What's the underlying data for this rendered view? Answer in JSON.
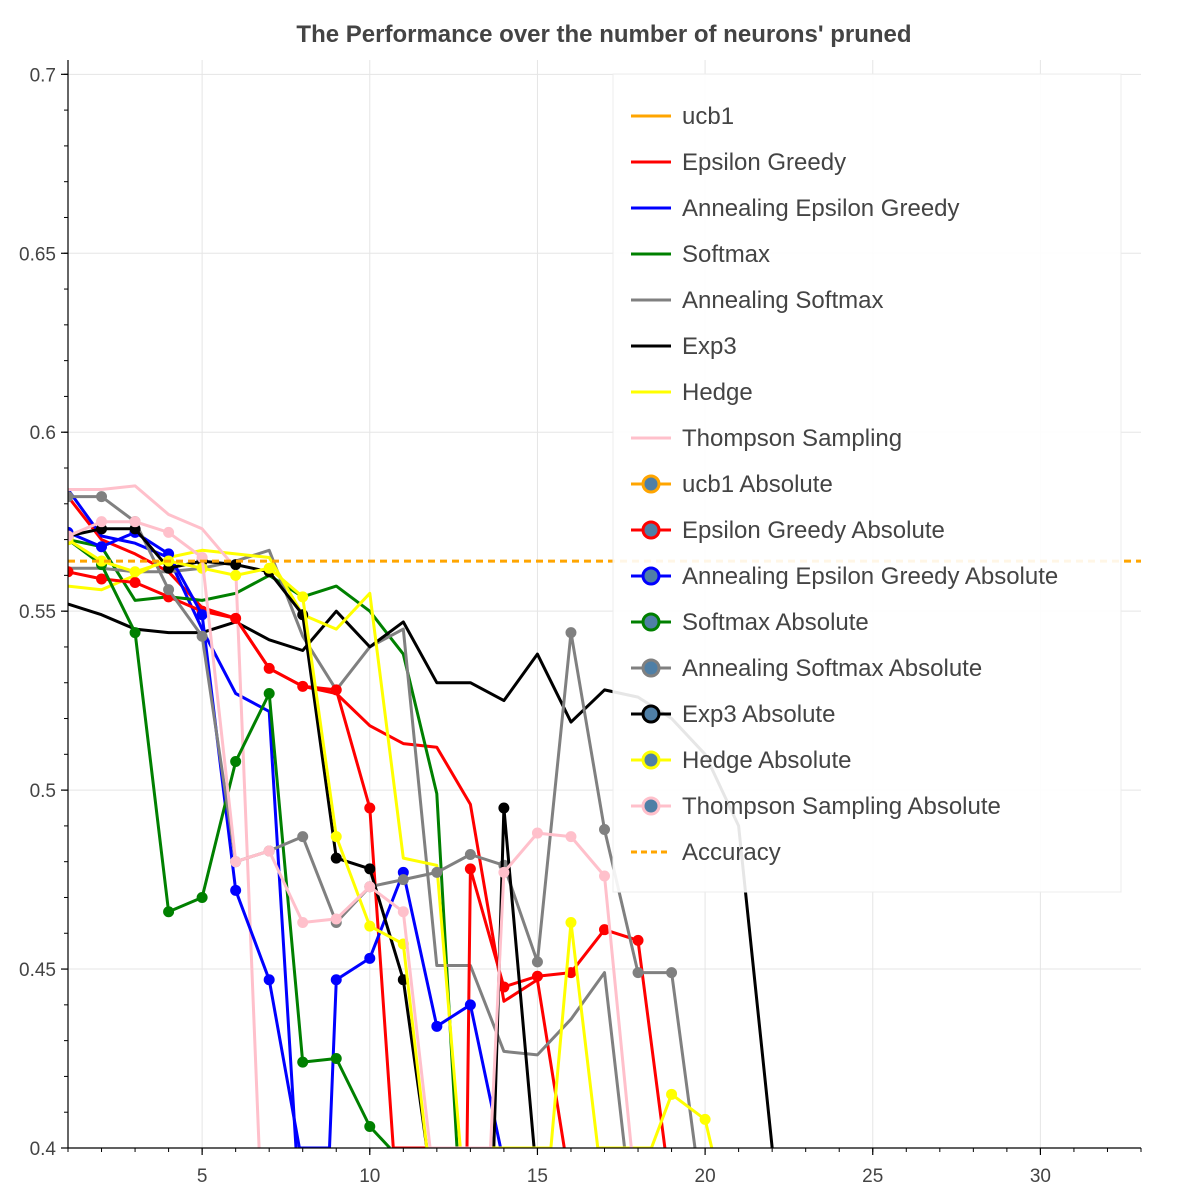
{
  "chart_data": {
    "type": "line",
    "title": "The Performance over the number of neurons' pruned",
    "xlabel": "",
    "ylabel": "",
    "xlim": [
      1,
      33
    ],
    "ylim": [
      0.4,
      0.704
    ],
    "x_ticks": [
      5,
      10,
      15,
      20,
      25,
      30
    ],
    "y_ticks": [
      0.4,
      0.45,
      0.5,
      0.55,
      0.6,
      0.65,
      0.7
    ],
    "x_tick_labels": [
      "5",
      "10",
      "15",
      "20",
      "25",
      "30"
    ],
    "y_tick_labels": [
      "0.4",
      "0.45",
      "0.5",
      "0.55",
      "0.6",
      "0.65",
      "0.7"
    ],
    "grid": true,
    "legend_position": "top-right",
    "series": [
      {
        "name": "ucb1",
        "color": "#ffa500",
        "marker": false,
        "dash": false,
        "points": []
      },
      {
        "name": "Epsilon Greedy",
        "color": "#ff0000",
        "marker": false,
        "dash": false,
        "points": [
          [
            1,
            0.582
          ],
          [
            2,
            0.57
          ],
          [
            3,
            0.566
          ],
          [
            4,
            0.561
          ],
          [
            5,
            0.551
          ],
          [
            6,
            0.548
          ],
          [
            7,
            0.534
          ],
          [
            8,
            0.529
          ],
          [
            9,
            0.527
          ],
          [
            10,
            0.518
          ],
          [
            11,
            0.513
          ],
          [
            12,
            0.512
          ],
          [
            13,
            0.496
          ],
          [
            14,
            0.441
          ],
          [
            15,
            0.447
          ],
          [
            15.8,
            0.4
          ]
        ]
      },
      {
        "name": "Annealing Epsilon Greedy",
        "color": "#0000ff",
        "marker": false,
        "dash": false,
        "points": [
          [
            1,
            0.584
          ],
          [
            2,
            0.571
          ],
          [
            3,
            0.569
          ],
          [
            4,
            0.565
          ],
          [
            5,
            0.545
          ],
          [
            6,
            0.527
          ],
          [
            7,
            0.522
          ],
          [
            7.8,
            0.4
          ]
        ]
      },
      {
        "name": "Softmax",
        "color": "#008000",
        "marker": false,
        "dash": false,
        "points": [
          [
            1,
            0.57
          ],
          [
            2,
            0.568
          ],
          [
            3,
            0.553
          ],
          [
            4,
            0.554
          ],
          [
            5,
            0.553
          ],
          [
            6,
            0.555
          ],
          [
            7,
            0.56
          ],
          [
            8,
            0.554
          ],
          [
            9,
            0.557
          ],
          [
            10,
            0.55
          ],
          [
            11,
            0.538
          ],
          [
            12,
            0.499
          ],
          [
            12.6,
            0.4
          ]
        ]
      },
      {
        "name": "Annealing Softmax",
        "color": "#808080",
        "marker": false,
        "dash": false,
        "points": [
          [
            1,
            0.562
          ],
          [
            2,
            0.562
          ],
          [
            3,
            0.561
          ],
          [
            4,
            0.561
          ],
          [
            5,
            0.562
          ],
          [
            6,
            0.564
          ],
          [
            7,
            0.567
          ],
          [
            8,
            0.543
          ],
          [
            9,
            0.528
          ],
          [
            10,
            0.54
          ],
          [
            11,
            0.545
          ],
          [
            12,
            0.451
          ],
          [
            13,
            0.451
          ],
          [
            14,
            0.427
          ],
          [
            15,
            0.426
          ],
          [
            16,
            0.436
          ],
          [
            17,
            0.449
          ],
          [
            17.6,
            0.4
          ]
        ]
      },
      {
        "name": "Exp3",
        "color": "#000000",
        "marker": false,
        "dash": false,
        "points": [
          [
            1,
            0.552
          ],
          [
            2,
            0.549
          ],
          [
            3,
            0.545
          ],
          [
            4,
            0.544
          ],
          [
            5,
            0.544
          ],
          [
            6,
            0.547
          ],
          [
            7,
            0.542
          ],
          [
            8,
            0.539
          ],
          [
            9,
            0.55
          ],
          [
            10,
            0.54
          ],
          [
            11,
            0.547
          ],
          [
            12,
            0.53
          ],
          [
            13,
            0.53
          ],
          [
            14,
            0.525
          ],
          [
            15,
            0.538
          ],
          [
            16,
            0.519
          ],
          [
            17,
            0.528
          ],
          [
            18,
            0.526
          ],
          [
            19,
            0.52
          ],
          [
            20,
            0.51
          ],
          [
            21,
            0.49
          ],
          [
            22,
            0.4
          ]
        ]
      },
      {
        "name": "Hedge",
        "color": "#ffff00",
        "marker": false,
        "dash": false,
        "points": [
          [
            1,
            0.557
          ],
          [
            2,
            0.556
          ],
          [
            3,
            0.56
          ],
          [
            4,
            0.565
          ],
          [
            5,
            0.567
          ],
          [
            6,
            0.566
          ],
          [
            7,
            0.565
          ],
          [
            8,
            0.549
          ],
          [
            9,
            0.545
          ],
          [
            10,
            0.555
          ],
          [
            11,
            0.481
          ],
          [
            12,
            0.479
          ],
          [
            12.7,
            0.4
          ]
        ]
      },
      {
        "name": "Thompson Sampling",
        "color": "#ffc0cb",
        "marker": false,
        "dash": false,
        "points": [
          [
            1,
            0.584
          ],
          [
            2,
            0.584
          ],
          [
            3,
            0.585
          ],
          [
            4,
            0.577
          ],
          [
            5,
            0.573
          ],
          [
            6,
            0.562
          ],
          [
            6.7,
            0.4
          ]
        ]
      },
      {
        "name": "ucb1 Absolute",
        "color": "#ffa500",
        "marker": true,
        "dash": false,
        "points": []
      },
      {
        "name": "Epsilon Greedy Absolute",
        "color": "#ff0000",
        "marker": true,
        "dash": false,
        "points": [
          [
            1,
            0.561
          ],
          [
            2,
            0.559
          ],
          [
            3,
            0.558
          ],
          [
            4,
            0.554
          ],
          [
            5,
            0.55
          ],
          [
            6,
            0.548
          ],
          [
            7,
            0.534
          ],
          [
            8,
            0.529
          ],
          [
            9,
            0.528
          ],
          [
            10,
            0.495
          ],
          [
            10.7,
            0.4
          ],
          [
            12.9,
            0.4
          ],
          [
            13,
            0.478
          ],
          [
            14,
            0.445
          ],
          [
            15,
            0.448
          ],
          [
            16,
            0.449
          ],
          [
            17,
            0.461
          ],
          [
            18,
            0.458
          ],
          [
            18.8,
            0.4
          ]
        ]
      },
      {
        "name": "Annealing Epsilon Greedy Absolute",
        "color": "#0000ff",
        "marker": true,
        "dash": false,
        "points": [
          [
            1,
            0.572
          ],
          [
            2,
            0.568
          ],
          [
            3,
            0.572
          ],
          [
            4,
            0.566
          ],
          [
            5,
            0.549
          ],
          [
            6,
            0.472
          ],
          [
            7,
            0.447
          ],
          [
            7.9,
            0.4
          ],
          [
            8.8,
            0.4
          ],
          [
            9,
            0.447
          ],
          [
            10,
            0.453
          ],
          [
            11,
            0.477
          ],
          [
            12,
            0.434
          ],
          [
            13,
            0.44
          ],
          [
            13.9,
            0.4
          ]
        ]
      },
      {
        "name": "Softmax Absolute",
        "color": "#008000",
        "marker": true,
        "dash": false,
        "points": [
          [
            1,
            0.57
          ],
          [
            2,
            0.563
          ],
          [
            3,
            0.544
          ],
          [
            4,
            0.466
          ],
          [
            5,
            0.47
          ],
          [
            6,
            0.508
          ],
          [
            7,
            0.527
          ],
          [
            8,
            0.424
          ],
          [
            9,
            0.425
          ],
          [
            10,
            0.406
          ],
          [
            10.6,
            0.4
          ]
        ]
      },
      {
        "name": "Annealing Softmax Absolute",
        "color": "#808080",
        "marker": true,
        "dash": false,
        "points": [
          [
            1,
            0.582
          ],
          [
            2,
            0.582
          ],
          [
            3,
            0.575
          ],
          [
            4,
            0.556
          ],
          [
            5,
            0.543
          ],
          [
            6,
            0.48
          ],
          [
            7,
            0.483
          ],
          [
            8,
            0.487
          ],
          [
            9,
            0.463
          ],
          [
            10,
            0.473
          ],
          [
            11,
            0.475
          ],
          [
            12,
            0.477
          ],
          [
            13,
            0.482
          ],
          [
            14,
            0.479
          ],
          [
            15,
            0.452
          ],
          [
            16,
            0.544
          ],
          [
            17,
            0.489
          ],
          [
            18,
            0.449
          ],
          [
            19,
            0.449
          ],
          [
            19.7,
            0.4
          ]
        ]
      },
      {
        "name": "Exp3 Absolute",
        "color": "#000000",
        "marker": true,
        "dash": false,
        "points": [
          [
            1,
            0.571
          ],
          [
            2,
            0.573
          ],
          [
            3,
            0.573
          ],
          [
            4,
            0.562
          ],
          [
            5,
            0.564
          ],
          [
            6,
            0.563
          ],
          [
            7,
            0.561
          ],
          [
            8,
            0.549
          ],
          [
            9,
            0.481
          ],
          [
            10,
            0.478
          ],
          [
            11,
            0.447
          ],
          [
            11.7,
            0.4
          ],
          [
            13.7,
            0.4
          ],
          [
            14,
            0.495
          ],
          [
            14.9,
            0.4
          ]
        ]
      },
      {
        "name": "Hedge Absolute",
        "color": "#ffff00",
        "marker": true,
        "dash": false,
        "points": [
          [
            1,
            0.57
          ],
          [
            2,
            0.564
          ],
          [
            3,
            0.561
          ],
          [
            4,
            0.564
          ],
          [
            5,
            0.562
          ],
          [
            6,
            0.56
          ],
          [
            7,
            0.562
          ],
          [
            8,
            0.554
          ],
          [
            9,
            0.487
          ],
          [
            10,
            0.462
          ],
          [
            11,
            0.457
          ],
          [
            11.7,
            0.4
          ],
          [
            15.4,
            0.4
          ],
          [
            16,
            0.463
          ],
          [
            16.8,
            0.4
          ],
          [
            18.4,
            0.4
          ],
          [
            19,
            0.415
          ],
          [
            20,
            0.408
          ],
          [
            20.2,
            0.4
          ]
        ]
      },
      {
        "name": "Thompson Sampling Absolute",
        "color": "#ffc0cb",
        "marker": true,
        "dash": false,
        "points": [
          [
            1,
            0.571
          ],
          [
            2,
            0.575
          ],
          [
            3,
            0.575
          ],
          [
            4,
            0.572
          ],
          [
            5,
            0.565
          ],
          [
            6,
            0.48
          ],
          [
            7,
            0.483
          ],
          [
            8,
            0.463
          ],
          [
            9,
            0.464
          ],
          [
            10,
            0.473
          ],
          [
            11,
            0.466
          ],
          [
            11.8,
            0.4
          ],
          [
            13.6,
            0.4
          ],
          [
            14,
            0.477
          ],
          [
            15,
            0.488
          ],
          [
            16,
            0.487
          ],
          [
            17,
            0.476
          ],
          [
            17.8,
            0.4
          ]
        ]
      },
      {
        "name": "Accuracy",
        "color": "#ffa500",
        "marker": false,
        "dash": true,
        "points": [
          [
            1,
            0.564
          ],
          [
            33,
            0.564
          ]
        ]
      }
    ]
  }
}
